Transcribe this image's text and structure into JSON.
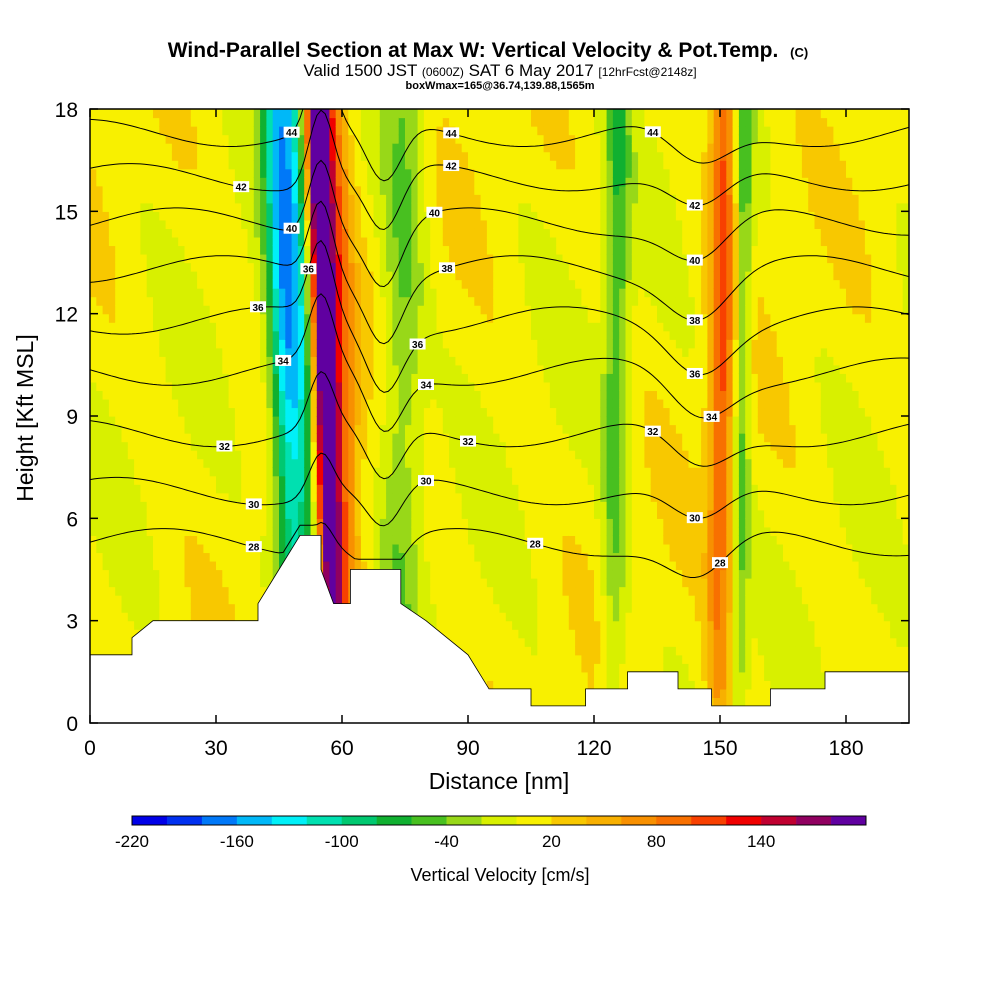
{
  "header": {
    "title": "Wind-Parallel Section at Max W: Vertical Velocity & Pot.Temp.",
    "title_suffix": "(C)",
    "subtitle_main1": "Valid 1500 JST ",
    "subtitle_small1": "(0600Z)",
    "subtitle_main2": " SAT 6 May 2017 ",
    "subtitle_small2": "[12hrFcst@2148z]",
    "subtitle3": "boxWmax=165@36.74,139.88,1565m"
  },
  "chart_data": {
    "type": "heatmap",
    "xlabel": "Distance [nm]",
    "ylabel": "Height [Kft MSL]",
    "xlim": [
      0,
      195
    ],
    "ylim": [
      0,
      18
    ],
    "x_ticks": [
      0,
      30,
      60,
      90,
      120,
      150,
      180
    ],
    "y_ticks": [
      0,
      3,
      6,
      9,
      12,
      15,
      18
    ],
    "fill_variable": "Vertical Velocity [cm/s]",
    "colorbar": {
      "label": "Vertical Velocity [cm/s]",
      "levels": [
        -220,
        -200,
        -180,
        -160,
        -140,
        -120,
        -100,
        -80,
        -60,
        -40,
        -20,
        0,
        20,
        40,
        60,
        80,
        100,
        120,
        140,
        160,
        180
      ],
      "colors": [
        "#0000e8",
        "#0030f0",
        "#0078f8",
        "#00b8f8",
        "#00f0f8",
        "#00e0b0",
        "#00c870",
        "#10b030",
        "#48c020",
        "#98d818",
        "#d8f000",
        "#f8f000",
        "#f8c800",
        "#f8b000",
        "#f89000",
        "#f87000",
        "#f84000",
        "#f00000",
        "#c00030",
        "#900060",
        "#6000a0"
      ],
      "tick_labels": [
        -220,
        -160,
        -100,
        -40,
        20,
        80,
        140
      ]
    },
    "features": [
      {
        "x": 48,
        "w": 4,
        "value": -150
      },
      {
        "x": 52,
        "w": 3,
        "value": -70
      },
      {
        "x": 57,
        "w": 2.5,
        "value": 170
      },
      {
        "x": 59,
        "w": 5,
        "value": 110
      },
      {
        "x": 74,
        "w": 5,
        "value": -50
      },
      {
        "x": 125,
        "w": 3,
        "value": -60
      },
      {
        "x": 150,
        "w": 3,
        "value": 95
      },
      {
        "x": 155,
        "w": 2,
        "value": -60
      }
    ],
    "terrain": [
      [
        0,
        2
      ],
      [
        10,
        2
      ],
      [
        10,
        2.5
      ],
      [
        15,
        3
      ],
      [
        40,
        3
      ],
      [
        40,
        3.5
      ],
      [
        45,
        4.5
      ],
      [
        50,
        5.5
      ],
      [
        55,
        5.5
      ],
      [
        55,
        4.5
      ],
      [
        58,
        3.5
      ],
      [
        62,
        3.5
      ],
      [
        62,
        4.5
      ],
      [
        74,
        4.5
      ],
      [
        74,
        3.5
      ],
      [
        80,
        3
      ],
      [
        90,
        2
      ],
      [
        95,
        1
      ],
      [
        105,
        1
      ],
      [
        105,
        0.5
      ],
      [
        118,
        0.5
      ],
      [
        118,
        1
      ],
      [
        128,
        1
      ],
      [
        128,
        1.5
      ],
      [
        140,
        1.5
      ],
      [
        140,
        1
      ],
      [
        148,
        1
      ],
      [
        148,
        0.5
      ],
      [
        162,
        0.5
      ],
      [
        162,
        1
      ],
      [
        175,
        1
      ],
      [
        175,
        1.5
      ],
      [
        195,
        1.5
      ]
    ],
    "theta_levels": [
      28,
      30,
      32,
      34,
      36,
      38,
      40,
      42,
      44
    ],
    "theta_base_heights": [
      5.3,
      6.8,
      8.5,
      10.3,
      11.8,
      13.3,
      14.7,
      16.0,
      17.3
    ],
    "isentrope_labels": [
      {
        "x": 39,
        "level": 28
      },
      {
        "x": 39,
        "level": 30
      },
      {
        "x": 32,
        "level": 32
      },
      {
        "x": 46,
        "level": 34
      },
      {
        "x": 40,
        "level": 36
      },
      {
        "x": 36,
        "level": 42
      },
      {
        "x": 48,
        "level": 40
      },
      {
        "x": 48,
        "level": 44
      },
      {
        "x": 52,
        "level": 36
      },
      {
        "x": 80,
        "level": 30
      },
      {
        "x": 90,
        "level": 32
      },
      {
        "x": 80,
        "level": 34
      },
      {
        "x": 78,
        "level": 36
      },
      {
        "x": 85,
        "level": 38
      },
      {
        "x": 82,
        "level": 40
      },
      {
        "x": 86,
        "level": 42
      },
      {
        "x": 86,
        "level": 44
      },
      {
        "x": 106,
        "level": 28
      },
      {
        "x": 134,
        "level": 32
      },
      {
        "x": 144,
        "level": 30
      },
      {
        "x": 148,
        "level": 34
      },
      {
        "x": 144,
        "level": 36
      },
      {
        "x": 144,
        "level": 38
      },
      {
        "x": 144,
        "level": 40
      },
      {
        "x": 144,
        "level": 42
      },
      {
        "x": 134,
        "level": 44
      },
      {
        "x": 150,
        "level": 28
      }
    ]
  }
}
